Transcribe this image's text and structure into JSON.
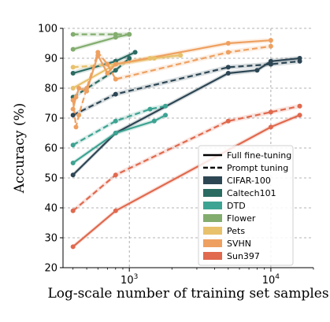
{
  "chart_data": {
    "type": "line",
    "xlabel": "Log-scale number of training set samples",
    "ylabel": "Accuracy (%)",
    "xscale": "log",
    "xlim": [
      340,
      20000
    ],
    "ylim": [
      20,
      100
    ],
    "x_ticks": [
      {
        "value": 1000,
        "base": "10",
        "exp": "3"
      },
      {
        "value": 10000,
        "base": "10",
        "exp": "4"
      }
    ],
    "y_ticks": [
      20,
      30,
      40,
      50,
      60,
      70,
      80,
      90,
      100
    ],
    "grid": true,
    "legend_position": "lower-right",
    "style_legend": [
      {
        "label": "Full fine-tuning",
        "dash": "solid"
      },
      {
        "label": "Prompt tuning",
        "dash": "dashed"
      }
    ],
    "series": [
      {
        "name": "CIFAR-100",
        "color": "#2d4654",
        "full": {
          "x": [
            400,
            800,
            5000,
            8000,
            10000,
            16000
          ],
          "y": [
            51,
            65,
            85,
            86,
            89,
            90
          ]
        },
        "prompt": {
          "x": [
            400,
            800,
            5000,
            10000,
            16000
          ],
          "y": [
            71,
            78,
            87,
            88,
            89
          ]
        }
      },
      {
        "name": "Caltech101",
        "color": "#2a6b62",
        "full": {
          "x": [
            400,
            800,
            1100
          ],
          "y": [
            85,
            89,
            92
          ]
        },
        "prompt": {
          "x": [
            400,
            800,
            1000
          ],
          "y": [
            77,
            86,
            90
          ]
        }
      },
      {
        "name": "DTD",
        "color": "#3da392",
        "full": {
          "x": [
            400,
            800,
            1500,
            1800
          ],
          "y": [
            55,
            65,
            69,
            71
          ]
        },
        "prompt": {
          "x": [
            400,
            800,
            1400,
            1800
          ],
          "y": [
            61,
            69,
            73,
            74
          ]
        }
      },
      {
        "name": "Flower",
        "color": "#82ad6e",
        "full": {
          "x": [
            400,
            800,
            1000
          ],
          "y": [
            93,
            97,
            98
          ]
        },
        "prompt": {
          "x": [
            400,
            800,
            1000
          ],
          "y": [
            98,
            98,
            98
          ]
        }
      },
      {
        "name": "Pets",
        "color": "#e8c16c",
        "full": {
          "x": [
            400,
            800,
            1500,
            2300
          ],
          "y": [
            80,
            88,
            90,
            91
          ]
        },
        "prompt": {
          "x": [
            400,
            800,
            1400,
            2300
          ],
          "y": [
            87,
            88,
            90,
            91
          ]
        }
      },
      {
        "name": "SVHN",
        "color": "#eea060",
        "full": {
          "x": [
            400,
            420,
            440,
            500,
            600,
            700,
            800,
            5000,
            10000
          ],
          "y": [
            73,
            77,
            80,
            79,
            91,
            85,
            88,
            95,
            96
          ]
        },
        "prompt": {
          "x": [
            400,
            420,
            440,
            500,
            600,
            700,
            800,
            5000,
            10000
          ],
          "y": [
            76,
            67,
            71,
            80,
            92,
            88,
            83,
            92,
            94
          ]
        }
      },
      {
        "name": "Sun397",
        "color": "#e0694e",
        "full": {
          "x": [
            400,
            800,
            10000,
            16000
          ],
          "y": [
            27,
            39,
            67,
            71
          ]
        },
        "prompt": {
          "x": [
            400,
            800,
            5000,
            10000,
            16000
          ],
          "y": [
            39,
            51,
            69,
            72,
            74
          ]
        }
      }
    ]
  }
}
